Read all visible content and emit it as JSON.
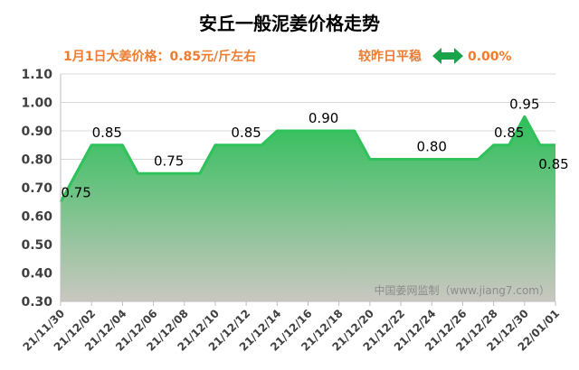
{
  "chart_data": {
    "type": "area",
    "title": "安丘一般泥姜价格走势",
    "subtitle_left": "1月1日大姜价格：0.85元/斤左右",
    "subtitle_right_label": "较昨日平稳",
    "subtitle_right_value": "0.00%",
    "watermark": "中国姜网监制（www.jiang7.com）",
    "ylim": [
      0.3,
      1.1
    ],
    "yticks": [
      "0.30",
      "0.40",
      "0.50",
      "0.60",
      "0.70",
      "0.80",
      "0.90",
      "1.00",
      "1.10"
    ],
    "x_tick_labels": [
      "21/11/30",
      "21/12/02",
      "21/12/04",
      "21/12/06",
      "21/12/08",
      "21/12/10",
      "21/12/12",
      "21/12/14",
      "21/12/16",
      "21/12/18",
      "21/12/20",
      "21/12/22",
      "21/12/24",
      "21/12/26",
      "21/12/28",
      "21/12/30",
      "22/01/01"
    ],
    "x": [
      "21/11/30",
      "21/12/01",
      "21/12/02",
      "21/12/03",
      "21/12/04",
      "21/12/05",
      "21/12/06",
      "21/12/07",
      "21/12/08",
      "21/12/09",
      "21/12/10",
      "21/12/11",
      "21/12/12",
      "21/12/13",
      "21/12/14",
      "21/12/15",
      "21/12/16",
      "21/12/17",
      "21/12/18",
      "21/12/19",
      "21/12/20",
      "21/12/21",
      "21/12/22",
      "21/12/23",
      "21/12/24",
      "21/12/25",
      "21/12/26",
      "21/12/27",
      "21/12/28",
      "21/12/29",
      "21/12/30",
      "21/12/31",
      "22/01/01"
    ],
    "values": [
      0.65,
      0.75,
      0.85,
      0.85,
      0.85,
      0.75,
      0.75,
      0.75,
      0.75,
      0.75,
      0.85,
      0.85,
      0.85,
      0.85,
      0.9,
      0.9,
      0.9,
      0.9,
      0.9,
      0.9,
      0.8,
      0.8,
      0.8,
      0.8,
      0.8,
      0.8,
      0.8,
      0.8,
      0.85,
      0.85,
      0.95,
      0.85,
      0.85
    ],
    "data_labels": [
      {
        "x": "21/12/01",
        "text": "0.75",
        "pos": "below"
      },
      {
        "x": "21/12/03",
        "text": "0.85",
        "pos": "above"
      },
      {
        "x": "21/12/07",
        "text": "0.75",
        "pos": "above"
      },
      {
        "x": "21/12/12",
        "text": "0.85",
        "pos": "above"
      },
      {
        "x": "21/12/17",
        "text": "0.90",
        "pos": "above"
      },
      {
        "x": "21/12/24",
        "text": "0.80",
        "pos": "above"
      },
      {
        "x": "21/12/29",
        "text": "0.85",
        "pos": "above"
      },
      {
        "x": "21/12/30",
        "text": "0.95",
        "pos": "above"
      },
      {
        "x": "22/01/01",
        "text": "0.85",
        "pos": "below"
      }
    ],
    "grid": true,
    "colors": {
      "title": "#000000",
      "subtitle": "#ed7d31",
      "arrow": "#1aa34a",
      "line": "#2fc25b",
      "fill_top": "#2fbf5a",
      "fill_bottom": "#c9c7c0",
      "axis_text": "#404040",
      "grid": "#d9d9d9",
      "watermark": "#8c8c8c"
    }
  }
}
